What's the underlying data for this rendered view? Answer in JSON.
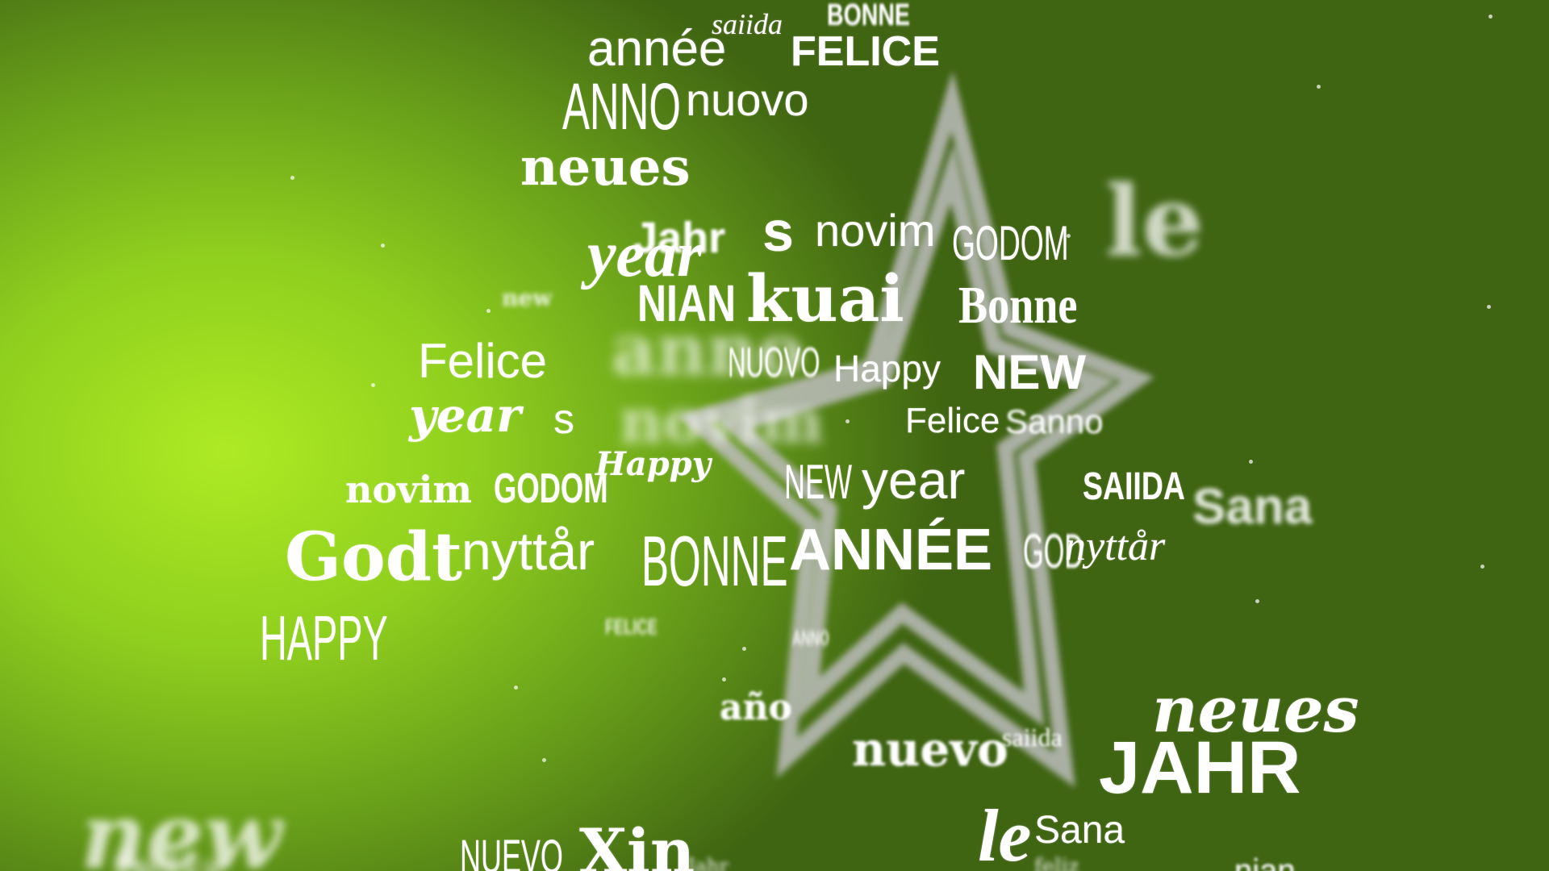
{
  "colors": {
    "text": "#ffffff",
    "bg_light": "#aeea24",
    "bg_dark": "#3f6412",
    "star": "#b9b9b9"
  },
  "words": {
    "w01": "BONNE",
    "w02": "saiida",
    "w03": "année",
    "w04": "FELICE",
    "w05": "ANNO",
    "w06": "nuovo",
    "w07": "neues",
    "w08": "Jahr",
    "w09": "year",
    "w10": "s",
    "w11": "novim",
    "w12": "GODOM",
    "w13": "le",
    "w14": "new",
    "w15": "NIAN",
    "w16": "kuai",
    "w17": "Bonne",
    "w18": "Felice",
    "w19": "anno",
    "w20": "NUOVO",
    "w21": "Happy",
    "w22": "NEW",
    "w23": "year",
    "w24": "s",
    "w25": "novim",
    "w26": "Felice",
    "w27": "Sanno",
    "w28": "Happy",
    "w29": "novim",
    "w30": "GODOM",
    "w31": "NEW",
    "w32": "year",
    "w33": "SAIIDA",
    "w34": "Sana",
    "w35": "Godt",
    "w36": "nyttår",
    "w37": "BONNE",
    "w38": "ANNÉE",
    "w39": "GOD",
    "w40": "nyttår",
    "w41": "HAPPY",
    "w42": "FELICE",
    "w43": "año",
    "w44": "neues",
    "w45": "nuevo",
    "w46": "saiida",
    "w47": "JAHR",
    "w48": "new",
    "w49": "NUEVO",
    "w50": "Xin",
    "w51": "le",
    "w52": "Sana",
    "w53": "feliz",
    "w54": "Jahr",
    "w55": "ANNO",
    "w56": "feliz",
    "w57": "nian"
  }
}
